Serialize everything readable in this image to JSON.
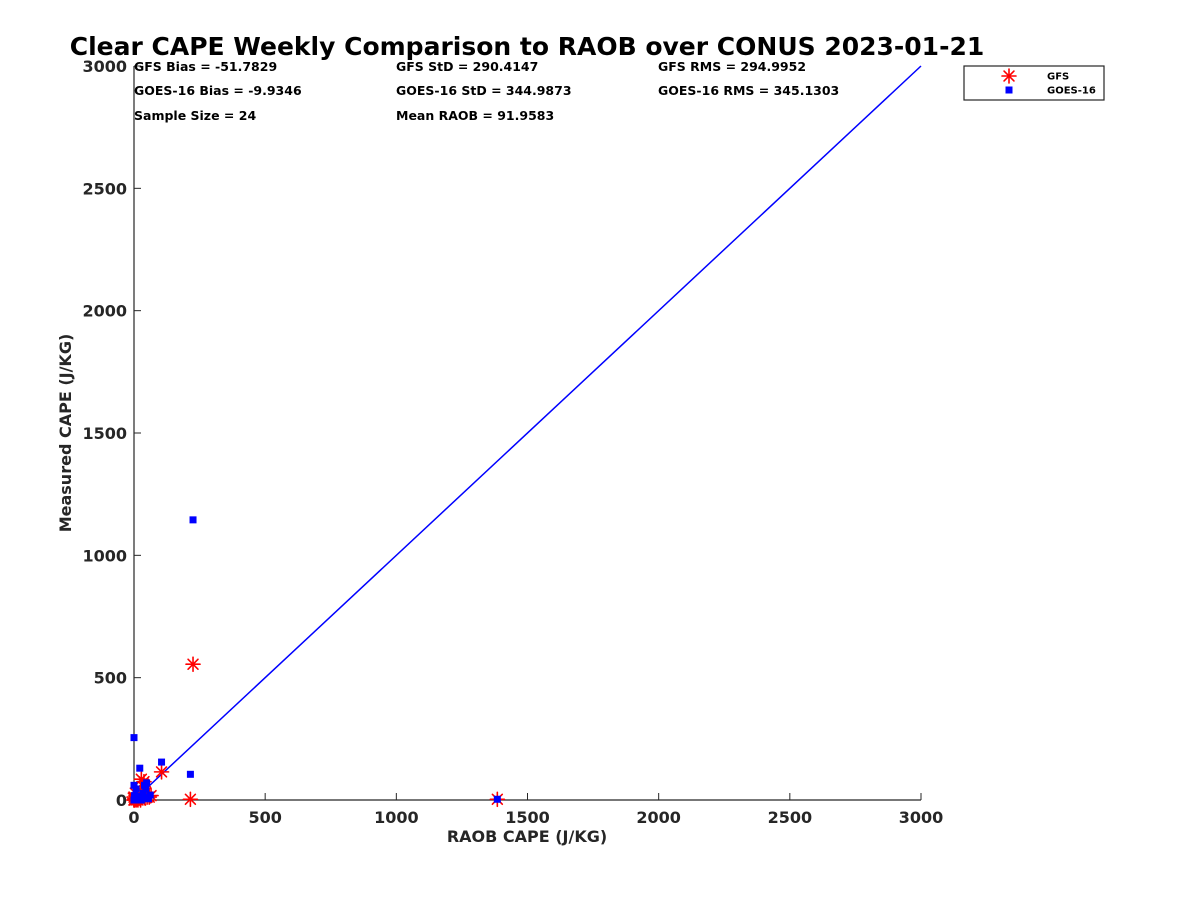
{
  "chart_data": {
    "type": "scatter",
    "title": "Clear CAPE Weekly Comparison to RAOB over CONUS 2023-01-21",
    "xlabel": "RAOB CAPE (J/KG)",
    "ylabel": "Measured CAPE (J/KG)",
    "xlim": [
      0,
      3000
    ],
    "ylim": [
      0,
      3000
    ],
    "xticks": [
      "0",
      "500",
      "1000",
      "1500",
      "2000",
      "2500",
      "3000"
    ],
    "yticks": [
      "0",
      "500",
      "1000",
      "1500",
      "2000",
      "2500",
      "3000"
    ],
    "grid": false,
    "legend_position": "top-right (outside plot)",
    "stats": [
      [
        "GFS Bias = -51.7829",
        "GFS StD = 290.4147",
        "GFS RMS = 294.9952"
      ],
      [
        "GOES-16 Bias = -9.9346",
        "GOES-16 StD = 344.9873",
        "GOES-16 RMS = 345.1303"
      ],
      [
        "Sample Size = 24",
        "Mean RAOB = 91.9583",
        ""
      ]
    ],
    "reference_line": {
      "x": [
        0,
        3000
      ],
      "y": [
        0,
        3000
      ],
      "color": "#0000ff"
    },
    "series": [
      {
        "name": "GFS",
        "marker": "asterisk",
        "color": "#ff0000",
        "points": [
          [
            0,
            0
          ],
          [
            0,
            12
          ],
          [
            3,
            5
          ],
          [
            5,
            28
          ],
          [
            8,
            0
          ],
          [
            12,
            4
          ],
          [
            18,
            10
          ],
          [
            25,
            0
          ],
          [
            30,
            22
          ],
          [
            35,
            55
          ],
          [
            38,
            75
          ],
          [
            42,
            8
          ],
          [
            45,
            30
          ],
          [
            50,
            12
          ],
          [
            58,
            12
          ],
          [
            65,
            18
          ],
          [
            105,
            115
          ],
          [
            215,
            3
          ],
          [
            225,
            555
          ],
          [
            1385,
            3
          ],
          [
            0,
            0
          ],
          [
            2,
            0
          ],
          [
            15,
            0
          ],
          [
            28,
            85
          ]
        ]
      },
      {
        "name": "GOES-16",
        "marker": "square",
        "color": "#0000ff",
        "points": [
          [
            0,
            255
          ],
          [
            0,
            60
          ],
          [
            0,
            0
          ],
          [
            2,
            18
          ],
          [
            5,
            3
          ],
          [
            8,
            45
          ],
          [
            12,
            8
          ],
          [
            18,
            15
          ],
          [
            22,
            130
          ],
          [
            28,
            0
          ],
          [
            35,
            28
          ],
          [
            40,
            60
          ],
          [
            45,
            45
          ],
          [
            52,
            10
          ],
          [
            55,
            5
          ],
          [
            62,
            20
          ],
          [
            105,
            155
          ],
          [
            215,
            105
          ],
          [
            225,
            1145
          ],
          [
            1385,
            3
          ],
          [
            3,
            10
          ],
          [
            10,
            0
          ],
          [
            30,
            12
          ],
          [
            48,
            70
          ]
        ]
      }
    ]
  }
}
